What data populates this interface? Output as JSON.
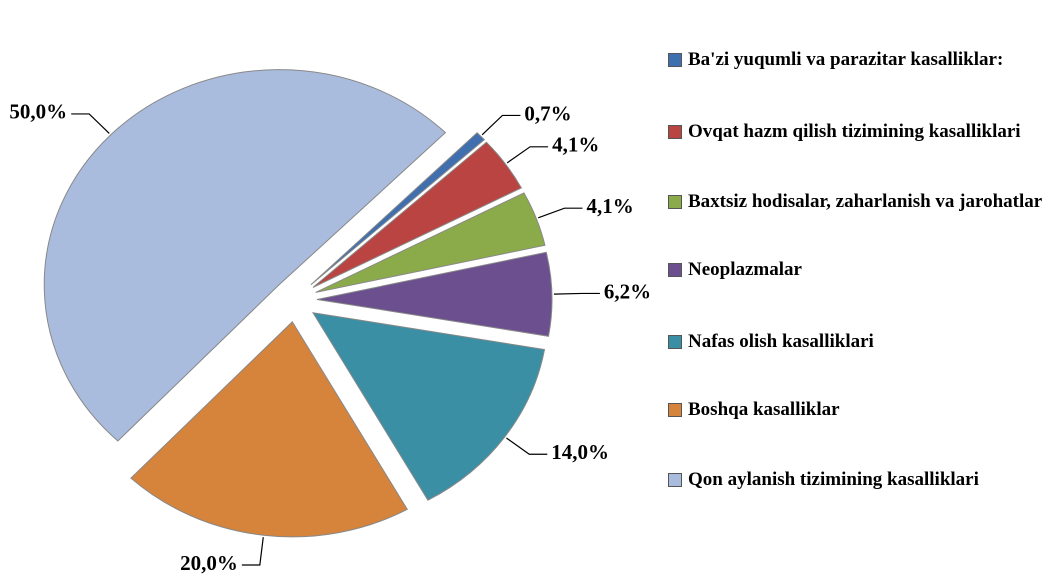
{
  "chart_data": {
    "type": "pie",
    "categories": [
      "Ba'zi yuqumli va parazitar kasalliklar:",
      "Ovqat hazm qilish tizimining kasalliklari",
      "Baxtsiz hodisalar, zaharlanish va jarohatlar",
      "Neoplazmalar",
      "Nafas olish kasalliklari",
      "Boshqa kasalliklar",
      "Qon aylanish tizimining kasalliklari"
    ],
    "values": [
      0.7,
      4.1,
      4.1,
      6.2,
      14.0,
      20.0,
      50.0
    ],
    "value_labels": [
      "0,7%",
      "4,1%",
      "4,1%",
      "6,2%",
      "14,0%",
      "20,0%",
      "50,0%"
    ],
    "colors": [
      "#3f6fae",
      "#b94441",
      "#8bab4a",
      "#6b4f8e",
      "#3a8fa4",
      "#d6843c",
      "#a9bcde"
    ],
    "legend": "right"
  }
}
